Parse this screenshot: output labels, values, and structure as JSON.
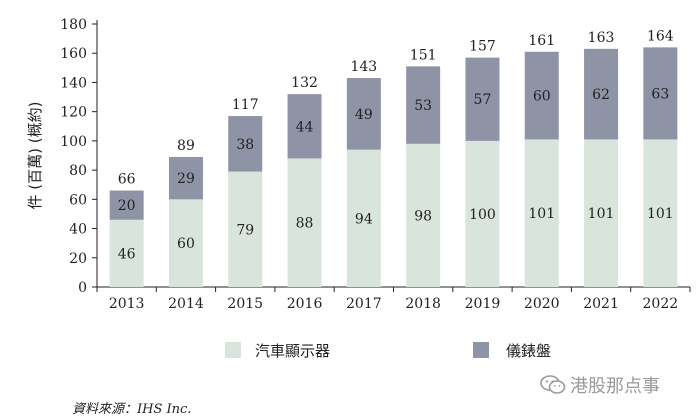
{
  "chart_data": {
    "type": "bar",
    "stacked": true,
    "categories": [
      "2013",
      "2014",
      "2015",
      "2016",
      "2017",
      "2018",
      "2019",
      "2020",
      "2021",
      "2022"
    ],
    "series": [
      {
        "name": "汽車顯示器",
        "values": [
          46,
          60,
          79,
          88,
          94,
          98,
          100,
          101,
          101,
          101
        ],
        "color": "#d9e5dc"
      },
      {
        "name": "儀錶盤",
        "values": [
          20,
          29,
          38,
          44,
          49,
          53,
          57,
          60,
          62,
          63
        ],
        "color": "#8f93a6"
      }
    ],
    "totals": [
      66,
      89,
      117,
      132,
      143,
      151,
      157,
      161,
      163,
      164
    ],
    "ylabel": "件 (百萬) (概約)",
    "ylim": [
      0,
      180
    ],
    "yticks": [
      0,
      20,
      40,
      60,
      80,
      100,
      120,
      140,
      160,
      180
    ],
    "legend_position": "bottom",
    "grid": false
  },
  "source_text": "資料來源：IHS Inc.",
  "watermark_text": "港股那点事",
  "watermark_icon": "wechat-icon"
}
